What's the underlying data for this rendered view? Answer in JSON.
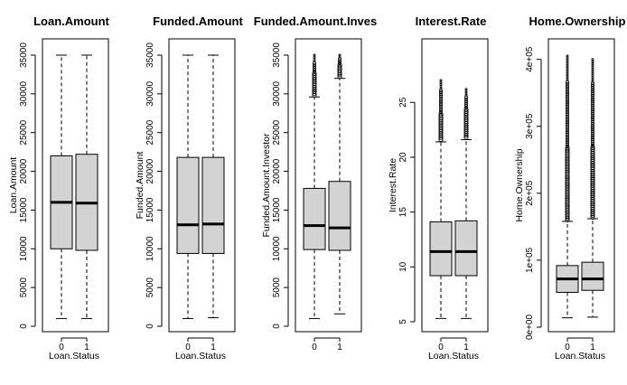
{
  "chart_data": [
    {
      "type": "boxplot",
      "title": "Loan.Amount",
      "xlabel": "Loan.Status",
      "ylabel": "Loan.Amount",
      "categories": [
        "0",
        "1"
      ],
      "yticks": [
        0,
        5000,
        10000,
        15000,
        20000,
        25000,
        30000,
        35000
      ],
      "ytick_labels": [
        "0",
        "5000",
        "10000",
        "15000",
        "20000",
        "25000",
        "30000",
        "35000"
      ],
      "ylim": [
        0,
        35000
      ],
      "boxes": [
        {
          "category": "0",
          "whisker_low": 1000,
          "q1": 10000,
          "median": 16000,
          "q3": 22000,
          "whisker_high": 35000,
          "outliers_from": null,
          "outliers_to": null
        },
        {
          "category": "1",
          "whisker_low": 1000,
          "q1": 9800,
          "median": 15900,
          "q3": 22200,
          "whisker_high": 35000,
          "outliers_from": null,
          "outliers_to": null
        }
      ]
    },
    {
      "type": "boxplot",
      "title": "Funded.Amount",
      "xlabel": "Loan.Status",
      "ylabel": "Funded.Amount",
      "categories": [
        "0",
        "1"
      ],
      "yticks": [
        0,
        5000,
        10000,
        15000,
        20000,
        25000,
        30000,
        35000
      ],
      "ytick_labels": [
        "0",
        "5000",
        "10000",
        "15000",
        "20000",
        "25000",
        "30000",
        "35000"
      ],
      "ylim": [
        0,
        35000
      ],
      "boxes": [
        {
          "category": "0",
          "whisker_low": 1000,
          "q1": 9400,
          "median": 13100,
          "q3": 21800,
          "whisker_high": 35000,
          "outliers_from": null,
          "outliers_to": null
        },
        {
          "category": "1",
          "whisker_low": 1100,
          "q1": 9400,
          "median": 13200,
          "q3": 21800,
          "whisker_high": 35000,
          "outliers_from": null,
          "outliers_to": null
        }
      ]
    },
    {
      "type": "boxplot",
      "title": "Funded.Amount.Inves",
      "xlabel": "",
      "ylabel": "Funded.Amount.Investor",
      "categories": [
        "0",
        "1"
      ],
      "yticks": [
        0,
        5000,
        10000,
        15000,
        20000,
        25000,
        30000,
        35000
      ],
      "ytick_labels": [
        "0",
        "5000",
        "10000",
        "15000",
        "20000",
        "25000",
        "30000",
        "35000"
      ],
      "ylim": [
        0,
        35000
      ],
      "boxes": [
        {
          "category": "0",
          "whisker_low": 1000,
          "q1": 9900,
          "median": 13000,
          "q3": 17800,
          "whisker_high": 29600,
          "outliers_from": 29800,
          "outliers_to": 35000
        },
        {
          "category": "1",
          "whisker_low": 1600,
          "q1": 9800,
          "median": 12700,
          "q3": 18700,
          "whisker_high": 32000,
          "outliers_from": 32200,
          "outliers_to": 35000
        }
      ]
    },
    {
      "type": "boxplot",
      "title": "Interest.Rate",
      "xlabel": "Loan.Status",
      "ylabel": "Interest.Rate",
      "categories": [
        "0",
        "1"
      ],
      "yticks": [
        5,
        10,
        15,
        20,
        25
      ],
      "ytick_labels": [
        "5",
        "10",
        "15",
        "20",
        "25"
      ],
      "ylim": [
        5,
        27
      ],
      "boxes": [
        {
          "category": "0",
          "whisker_low": 5.3,
          "q1": 9.2,
          "median": 11.4,
          "q3": 14.1,
          "whisker_high": 21.4,
          "outliers_from": 21.6,
          "outliers_to": 27
        },
        {
          "category": "1",
          "whisker_low": 5.3,
          "q1": 9.2,
          "median": 11.4,
          "q3": 14.2,
          "whisker_high": 21.6,
          "outliers_from": 21.8,
          "outliers_to": 26.2
        }
      ]
    },
    {
      "type": "boxplot",
      "title": "Home.Ownership",
      "xlabel": "Loan.Status",
      "ylabel": "Home.Ownership",
      "categories": [
        "0",
        "1"
      ],
      "yticks": [
        0,
        100000,
        200000,
        300000,
        400000
      ],
      "ytick_labels": [
        "0e+00",
        "1e+05",
        "2e+05",
        "3e+05",
        "4e+05"
      ],
      "ylim": [
        0,
        405000
      ],
      "boxes": [
        {
          "category": "0",
          "whisker_low": 14000,
          "q1": 52000,
          "median": 72000,
          "q3": 92000,
          "whisker_high": 158000,
          "outliers_from": 160000,
          "outliers_to": 405000
        },
        {
          "category": "1",
          "whisker_low": 15000,
          "q1": 55000,
          "median": 72000,
          "q3": 97000,
          "whisker_high": 162000,
          "outliers_from": 164000,
          "outliers_to": 400000
        }
      ]
    }
  ]
}
